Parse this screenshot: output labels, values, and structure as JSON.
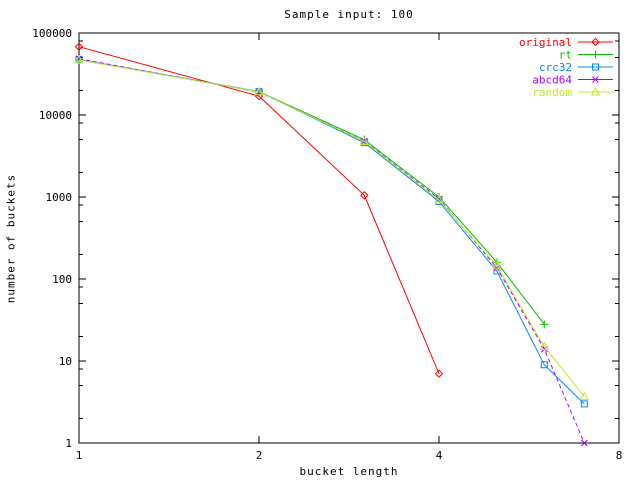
{
  "chart_data": {
    "type": "line",
    "title": "Sample input: 100",
    "xlabel": "bucket length",
    "ylabel": "number of buckets",
    "x_scale": "log2",
    "y_scale": "log10",
    "xlim": [
      1,
      8
    ],
    "ylim": [
      1,
      100000
    ],
    "x_ticks": [
      1,
      2,
      4,
      8
    ],
    "y_ticks": [
      1,
      10,
      100,
      1000,
      10000,
      100000
    ],
    "y_minor_ticks": [
      2,
      5,
      8,
      20,
      50,
      80,
      200,
      500,
      800,
      2000,
      5000,
      8000,
      20000,
      50000,
      80000
    ],
    "grid": "off",
    "legend_position": "top-right-inside",
    "border_color": "#000000",
    "background_color": "#ffffff",
    "series": [
      {
        "name": "original",
        "color": "#ff0000",
        "marker": "diamond",
        "points": [
          [
            1,
            68000
          ],
          [
            2,
            17000
          ],
          [
            3,
            1050
          ],
          [
            4,
            7
          ]
        ]
      },
      {
        "name": "rt",
        "color": "#00c000",
        "marker": "plus",
        "points": [
          [
            1,
            47000
          ],
          [
            2,
            19300
          ],
          [
            3,
            5000
          ],
          [
            4,
            1000
          ],
          [
            5,
            160
          ],
          [
            6,
            28
          ]
        ]
      },
      {
        "name": "crc32",
        "color": "#0088ff",
        "marker": "square",
        "points": [
          [
            1,
            47500
          ],
          [
            2,
            19300
          ],
          [
            3,
            4600
          ],
          [
            4,
            880
          ],
          [
            5,
            125
          ],
          [
            6,
            9
          ],
          [
            7,
            3
          ]
        ]
      },
      {
        "name": "abcd64",
        "color": "#aa00ff",
        "marker": "cross",
        "dash": "4,3",
        "points": [
          [
            1,
            48500
          ],
          [
            2,
            19000
          ],
          [
            3,
            4800
          ],
          [
            4,
            950
          ],
          [
            5,
            136
          ],
          [
            6,
            14
          ],
          [
            7,
            1
          ]
        ]
      },
      {
        "name": "random",
        "color": "#c0e830",
        "marker": "triangle",
        "points": [
          [
            1,
            47000
          ],
          [
            2,
            19200
          ],
          [
            3,
            4750
          ],
          [
            4,
            920
          ],
          [
            5,
            145
          ],
          [
            6,
            15
          ],
          [
            7,
            3.7
          ]
        ]
      }
    ]
  }
}
